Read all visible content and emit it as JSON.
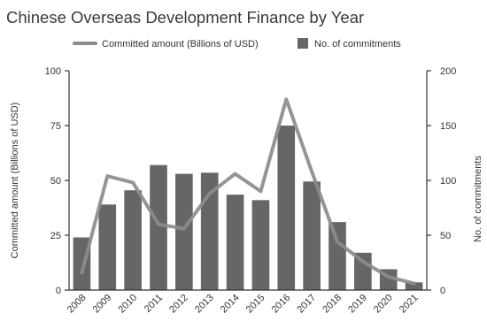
{
  "chart_data": {
    "type": "bar",
    "title": "Chinese Overseas Development Finance by Year",
    "categories": [
      "2008",
      "2009",
      "2010",
      "2011",
      "2012",
      "2013",
      "2014",
      "2015",
      "2016",
      "2017",
      "2018",
      "2019",
      "2020",
      "2021"
    ],
    "series": [
      {
        "name": "Committed amount (Billions of USD)",
        "type": "line",
        "axis": "left",
        "values": [
          8,
          52,
          49,
          30,
          28,
          44,
          53,
          45,
          87,
          54,
          22,
          13,
          6,
          3
        ],
        "color": "#8c8c8c"
      },
      {
        "name": "No. of commitments",
        "type": "bar",
        "axis": "right",
        "values": [
          48,
          78,
          91,
          114,
          106,
          107,
          87,
          82,
          150,
          99,
          62,
          34,
          19,
          7
        ],
        "color": "#666666"
      }
    ],
    "left_axis": {
      "label": "Committed amount (Billions of USD)",
      "range": [
        0,
        100
      ],
      "ticks": [
        0,
        25,
        50,
        75,
        100
      ]
    },
    "right_axis": {
      "label": "No. of commitments",
      "range": [
        0,
        200
      ],
      "ticks": [
        0,
        50,
        100,
        150,
        200
      ]
    },
    "legend_position": "top-center",
    "grid": false
  }
}
